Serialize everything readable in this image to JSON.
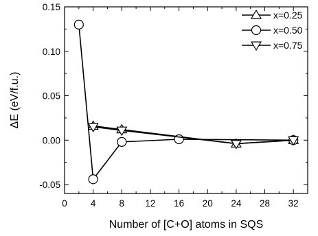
{
  "chart_data": {
    "type": "line",
    "xlabel": "Number of [C+O] atoms in SQS",
    "ylabel": "ΔE (eV/f.u.)",
    "xlim": [
      0,
      34
    ],
    "ylim": [
      -0.06,
      0.15
    ],
    "xticks": [
      0,
      4,
      8,
      12,
      16,
      20,
      24,
      28,
      32
    ],
    "yticks": [
      -0.05,
      0.0,
      0.05,
      0.1,
      0.15
    ],
    "ytick_labels": [
      "-0.05",
      "0.00",
      "0.05",
      "0.10",
      "0.15"
    ],
    "legend_position": "top-right",
    "grid": false,
    "series": [
      {
        "name": "x=0.25",
        "marker": "triangle-up",
        "x": [
          4,
          8,
          24,
          32
        ],
        "y": [
          0.016,
          0.012,
          -0.004,
          0.0
        ]
      },
      {
        "name": "x=0.50",
        "marker": "circle",
        "x": [
          2,
          4,
          8,
          16,
          32
        ],
        "y": [
          0.13,
          -0.044,
          -0.002,
          0.001,
          0.0
        ]
      },
      {
        "name": "x=0.75",
        "marker": "triangle-down",
        "x": [
          4,
          8,
          24,
          32
        ],
        "y": [
          0.015,
          0.011,
          -0.004,
          0.0
        ]
      }
    ]
  }
}
